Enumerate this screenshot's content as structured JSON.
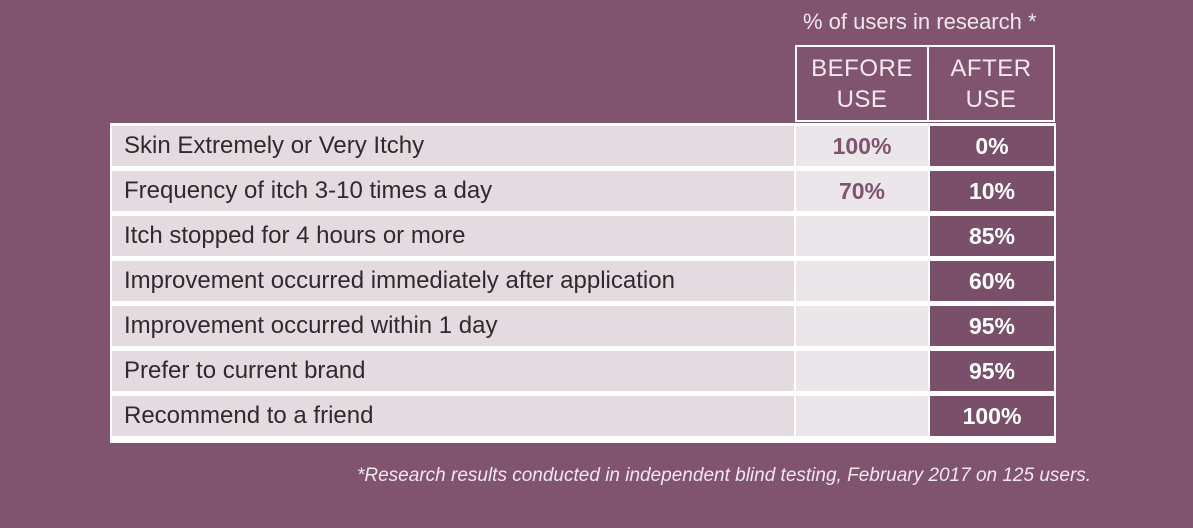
{
  "caption": "% of users in research *",
  "headers": {
    "before": {
      "line1": "BEFORE",
      "line2": "USE"
    },
    "after": {
      "line1": "AFTER",
      "line2": "USE"
    }
  },
  "rows": [
    {
      "label": "Skin Extremely or Very Itchy",
      "before": "100%",
      "after": "0%"
    },
    {
      "label": "Frequency of itch 3-10 times a day",
      "before": "70%",
      "after": "10%"
    },
    {
      "label": "Itch stopped for 4 hours or more",
      "before": "",
      "after": "85%"
    },
    {
      "label": "Improvement occurred immediately after application",
      "before": "",
      "after": "60%"
    },
    {
      "label": "Improvement occurred within 1 day",
      "before": "",
      "after": "95%"
    },
    {
      "label": "Prefer to current brand",
      "before": "",
      "after": "95%"
    },
    {
      "label": "Recommend to a friend",
      "before": "",
      "after": "100%"
    }
  ],
  "footnote": "*Research results conducted in independent blind testing, February 2017 on 125 users.",
  "colors": {
    "background": "#80536f",
    "label_cell": "#e4dbe0",
    "before_cell": "#ebe6ea",
    "after_cell": "#7a4f69",
    "accent_text": "#80536f"
  }
}
